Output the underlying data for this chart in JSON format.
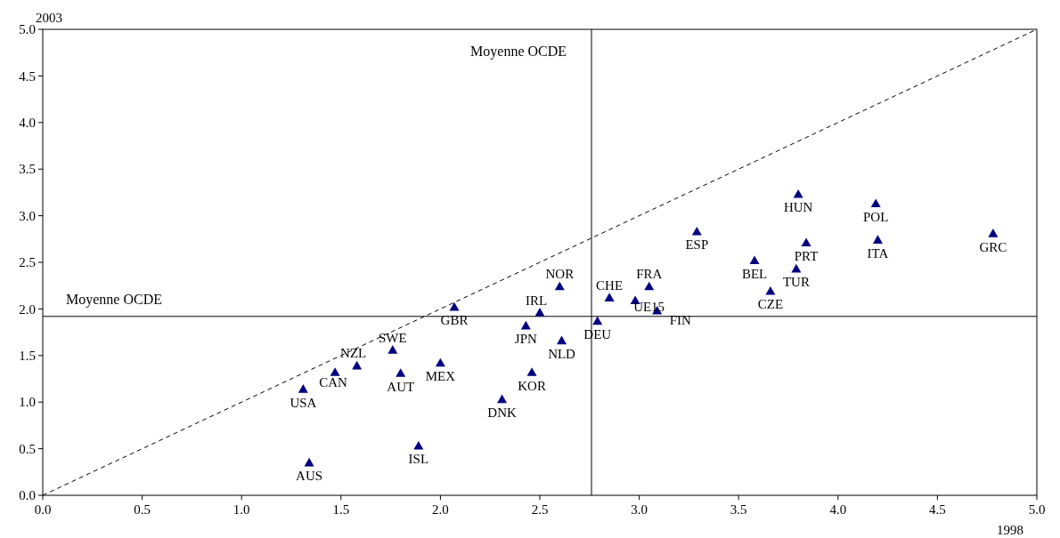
{
  "chart_data": {
    "type": "scatter",
    "xlabel": "1998",
    "ylabel": "2003",
    "xlim": [
      0,
      5
    ],
    "ylim": [
      0,
      5
    ],
    "xticks": [
      {
        "value": 0,
        "label": "0.0"
      },
      {
        "value": 0.5,
        "label": "0.5"
      },
      {
        "value": 1,
        "label": "1.0"
      },
      {
        "value": 1.5,
        "label": "1.5"
      },
      {
        "value": 2,
        "label": "2.0"
      },
      {
        "value": 2.5,
        "label": "2.5"
      },
      {
        "value": 3,
        "label": "3.0"
      },
      {
        "value": 3.5,
        "label": "3.5"
      },
      {
        "value": 4,
        "label": "4.0"
      },
      {
        "value": 4.5,
        "label": "4.5"
      },
      {
        "value": 5,
        "label": "5.0"
      }
    ],
    "yticks": [
      {
        "value": 0,
        "label": "0.0"
      },
      {
        "value": 0.5,
        "label": "0.5"
      },
      {
        "value": 1,
        "label": "1.0"
      },
      {
        "value": 1.5,
        "label": "1.5"
      },
      {
        "value": 2,
        "label": "2.0"
      },
      {
        "value": 2.5,
        "label": "2.5"
      },
      {
        "value": 3,
        "label": "3.0"
      },
      {
        "value": 3.5,
        "label": "3.5"
      },
      {
        "value": 4,
        "label": "4.0"
      },
      {
        "value": 4.5,
        "label": "4.5"
      },
      {
        "value": 5,
        "label": "5.0"
      }
    ],
    "grid": false,
    "series": [
      {
        "color": "#000080",
        "marker": "triangle",
        "x": [
          1.31,
          1.34,
          1.47,
          1.58,
          1.76,
          1.8,
          1.89,
          2.0,
          2.07,
          2.31,
          2.43,
          2.5,
          2.46,
          2.6,
          2.61,
          2.79,
          2.85,
          2.98,
          3.05,
          3.09,
          3.29,
          3.58,
          3.66,
          3.79,
          3.8,
          3.84,
          4.2,
          4.19,
          4.78
        ],
        "values": [
          1.14,
          0.35,
          1.32,
          1.39,
          1.56,
          1.31,
          0.53,
          1.42,
          2.02,
          1.03,
          1.82,
          1.96,
          1.32,
          2.24,
          1.66,
          1.87,
          2.12,
          2.09,
          2.24,
          1.98,
          2.83,
          2.52,
          2.19,
          2.43,
          3.23,
          2.71,
          2.74,
          3.13,
          2.81
        ]
      },
      {
        "type": "line",
        "color": "#000000",
        "line_style": "dashed",
        "marker": "none",
        "x": [
          0,
          5
        ],
        "values": [
          0,
          5
        ]
      }
    ],
    "ref_lines": [
      {
        "axis": "x",
        "value": 2.76,
        "label": "Moyenne OCDE",
        "color": "#000000"
      },
      {
        "axis": "y",
        "value": 1.92,
        "label": "Moyenne OCDE",
        "color": "#000000"
      }
    ],
    "annotations": [
      {
        "text": "USA",
        "x": 1.31,
        "y": 1.14
      },
      {
        "text": "AUS",
        "x": 1.34,
        "y": 0.35
      },
      {
        "text": "CAN",
        "x": 1.47,
        "y": 1.32
      },
      {
        "text": "NZL",
        "x": 1.58,
        "y": 1.39
      },
      {
        "text": "SWE",
        "x": 1.76,
        "y": 1.56
      },
      {
        "text": "AUT",
        "x": 1.8,
        "y": 1.31
      },
      {
        "text": "ISL",
        "x": 1.89,
        "y": 0.53
      },
      {
        "text": "MEX",
        "x": 2.0,
        "y": 1.42
      },
      {
        "text": "GBR",
        "x": 2.07,
        "y": 2.02
      },
      {
        "text": "DNK",
        "x": 2.31,
        "y": 1.03
      },
      {
        "text": "JPN",
        "x": 2.43,
        "y": 1.82
      },
      {
        "text": "IRL",
        "x": 2.5,
        "y": 1.96
      },
      {
        "text": "KOR",
        "x": 2.46,
        "y": 1.32
      },
      {
        "text": "NOR",
        "x": 2.6,
        "y": 2.24
      },
      {
        "text": "NLD",
        "x": 2.61,
        "y": 1.66
      },
      {
        "text": "DEU",
        "x": 2.79,
        "y": 1.87
      },
      {
        "text": "CHE",
        "x": 2.85,
        "y": 2.12
      },
      {
        "text": "UE15",
        "x": 2.98,
        "y": 2.09
      },
      {
        "text": "FRA",
        "x": 3.05,
        "y": 2.24
      },
      {
        "text": "FIN",
        "x": 3.09,
        "y": 1.98
      },
      {
        "text": "ESP",
        "x": 3.29,
        "y": 2.83
      },
      {
        "text": "BEL",
        "x": 3.58,
        "y": 2.52
      },
      {
        "text": "CZE",
        "x": 3.66,
        "y": 2.19
      },
      {
        "text": "TUR",
        "x": 3.79,
        "y": 2.43
      },
      {
        "text": "HUN",
        "x": 3.8,
        "y": 3.23
      },
      {
        "text": "PRT",
        "x": 3.84,
        "y": 2.71
      },
      {
        "text": "ITA",
        "x": 4.2,
        "y": 2.74
      },
      {
        "text": "POL",
        "x": 4.19,
        "y": 3.13
      },
      {
        "text": "GRC",
        "x": 4.78,
        "y": 2.81
      }
    ]
  }
}
